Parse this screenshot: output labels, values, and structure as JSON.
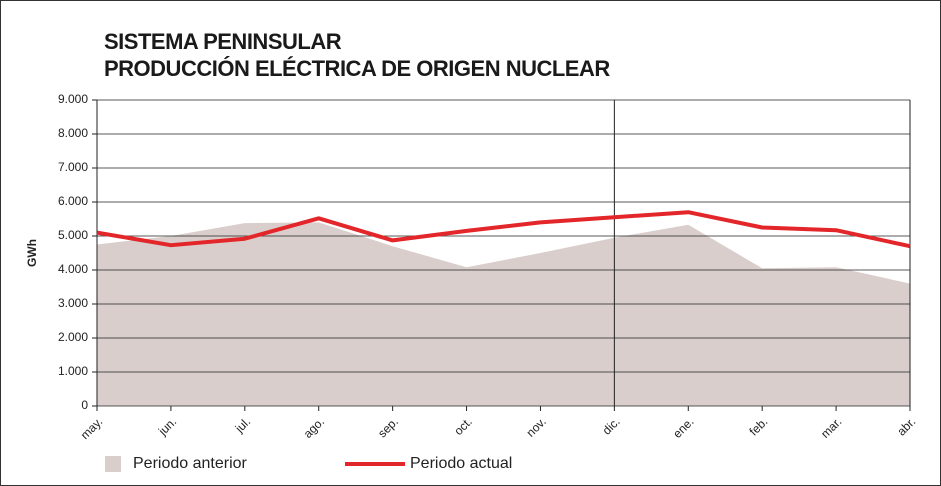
{
  "chart_data": {
    "type": "line",
    "title": "SISTEMA PENINSULAR",
    "subtitle": "PRODUCCIÓN ELÉCTRICA DE ORIGEN NUCLEAR",
    "y_label": "GWh",
    "categories": [
      "may.",
      "jun.",
      "jul.",
      "ago.",
      "sep.",
      "oct.",
      "nov.",
      "dic.",
      "ene.",
      "feb.",
      "mar.",
      "abr."
    ],
    "series": [
      {
        "name": "Periodo anterior",
        "type": "area",
        "color": "#d9cecb",
        "values": [
          4750,
          5000,
          5380,
          5400,
          4700,
          4080,
          4500,
          4950,
          5330,
          4050,
          4080,
          3600
        ]
      },
      {
        "name": "Periodo actual",
        "type": "line",
        "color": "#e3262a",
        "values": [
          5100,
          4730,
          4920,
          5520,
          4870,
          5150,
          5400,
          5550,
          5700,
          5250,
          5170,
          4700
        ]
      }
    ],
    "ylim": [
      0,
      9000
    ],
    "yticks": [
      0,
      {
        "value": 1000,
        "label": "1.000"
      },
      {
        "value": 2000,
        "label": "2.000"
      },
      {
        "value": 3000,
        "label": "3.000"
      },
      {
        "value": 4000,
        "label": "4.000"
      },
      {
        "value": 5000,
        "label": "5.000"
      },
      {
        "value": 6000,
        "label": "6.000"
      },
      {
        "value": 7000,
        "label": "7.000"
      },
      {
        "value": 8000,
        "label": "8.000"
      },
      {
        "value": 9000,
        "label": "9.000"
      }
    ],
    "grid": true,
    "legend": "bottom"
  }
}
